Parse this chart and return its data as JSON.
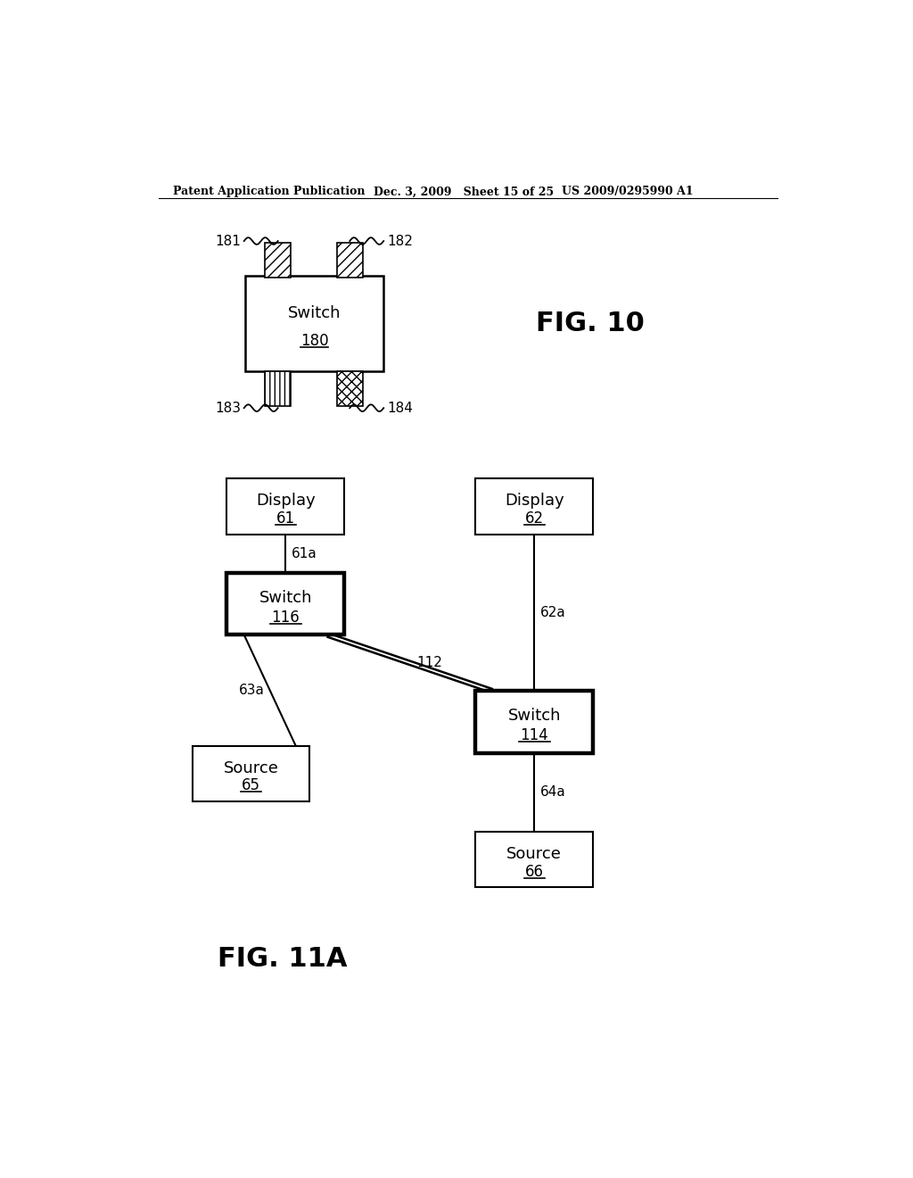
{
  "background_color": "#ffffff",
  "header_left": "Patent Application Publication",
  "header_mid": "Dec. 3, 2009   Sheet 15 of 25",
  "header_right": "US 2009/0295990 A1",
  "fig10_label": "FIG. 10",
  "fig11a_label": "FIG. 11A",
  "switch180_label": "Switch",
  "switch180_num": "180",
  "port181": "181",
  "port182": "182",
  "port183": "183",
  "port184": "184",
  "display61_label": "Display",
  "display61_num": "61",
  "display62_label": "Display",
  "display62_num": "62",
  "switch116_label": "Switch",
  "switch116_num": "116",
  "switch114_label": "Switch",
  "switch114_num": "114",
  "source65_label": "Source",
  "source65_num": "65",
  "source66_label": "Source",
  "source66_num": "66",
  "conn61a": "61a",
  "conn62a": "62a",
  "conn63a": "63a",
  "conn64a": "64a",
  "conn112": "112"
}
